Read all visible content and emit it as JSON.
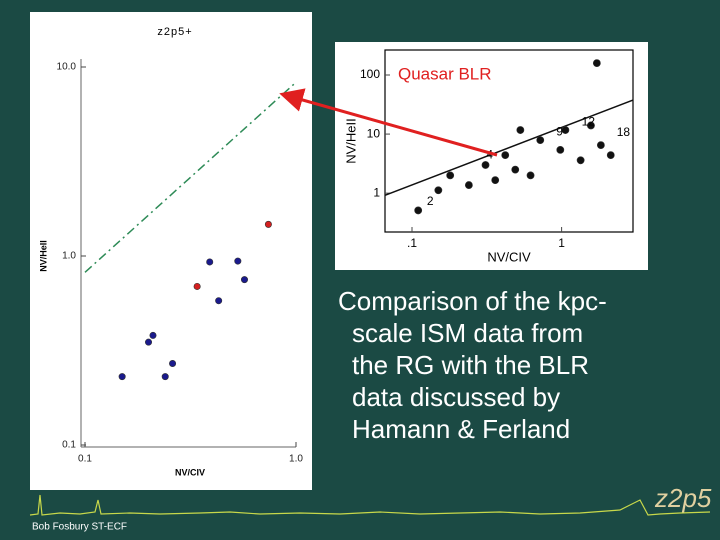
{
  "chart_data": [
    {
      "type": "scatter",
      "title": "z2p5+",
      "x_label": "NV/CIV",
      "y_label": "NV/HeII",
      "log_x": true,
      "log_y": true,
      "xlim": [
        0.1,
        1.0
      ],
      "ylim": [
        0.1,
        10
      ],
      "xticks": [
        {
          "value": 0.1,
          "label": "0.1"
        },
        {
          "value": 1,
          "label": "1.0"
        }
      ],
      "yticks": [
        0.1,
        {
          "value": 1,
          "label": "1.0"
        },
        {
          "value": 10,
          "label": "10.0"
        }
      ],
      "frame": "axes",
      "series": [
        {
          "color": "#1a1a8c",
          "x": [
            0.39,
            0.53,
            0.57,
            0.43,
            0.21,
            0.2,
            0.26,
            0.15,
            0.24
          ],
          "values": [
            0.93,
            0.94,
            0.75,
            0.58,
            0.38,
            0.35,
            0.27,
            0.23,
            0.23
          ]
        },
        {
          "color": "#d42020",
          "x": [
            0.74,
            0.34
          ],
          "values": [
            1.47,
            0.69
          ]
        }
      ],
      "fit": {
        "color": "#2e8b57",
        "style": "dashed",
        "x": [
          0.1,
          1.0
        ],
        "values": [
          0.82,
          8.3
        ]
      }
    },
    {
      "type": "scatter",
      "x_label": "NV/CIV",
      "y_label": "NV/HeII",
      "annotation": "Quasar BLR",
      "log_x": true,
      "log_y": true,
      "xlim": [
        0.066,
        3.0
      ],
      "ylim": [
        0.22,
        265
      ],
      "xticks": [
        {
          "value": 0.1,
          "label": ".1"
        },
        1
      ],
      "yticks": [
        1,
        10,
        100
      ],
      "frame": "box",
      "series": [
        {
          "color": "#111111",
          "x": [
            1.72,
            0.53,
            0.72,
            0.42,
            0.98,
            1.34,
            1.83,
            0.49,
            0.36,
            0.24,
            0.15,
            0.18,
            0.62,
            0.31,
            0.11,
            1.06,
            2.13,
            1.57
          ],
          "values": [
            159,
            11.7,
            7.9,
            4.4,
            5.4,
            3.6,
            6.5,
            2.5,
            1.66,
            1.37,
            1.12,
            2.0,
            2.0,
            3.0,
            0.51,
            11.7,
            4.4,
            14
          ]
        }
      ],
      "fit": {
        "color": "#111111",
        "style": "solid",
        "x": [
          0.066,
          3.0
        ],
        "values": [
          0.92,
          37.7
        ]
      },
      "point_labels": [
        {
          "text": "12",
          "x": 1.3,
          "y": 14
        },
        {
          "text": "18",
          "x": 2.23,
          "y": 9.3
        },
        {
          "text": "9",
          "x": 0.88,
          "y": 9.6
        },
        {
          "text": "4",
          "x": 0.3,
          "y": 3.9
        },
        {
          "text": "2",
          "x": 0.12,
          "y": 0.63
        }
      ]
    }
  ],
  "slide": {
    "caption": [
      "Comparison of the kpc-",
      "scale ISM data from",
      "the RG with the BLR",
      "data discussed by",
      "Hamann & Ferland"
    ],
    "footer": "Bob Fosbury ST-ECF",
    "logo": "z2p5"
  }
}
